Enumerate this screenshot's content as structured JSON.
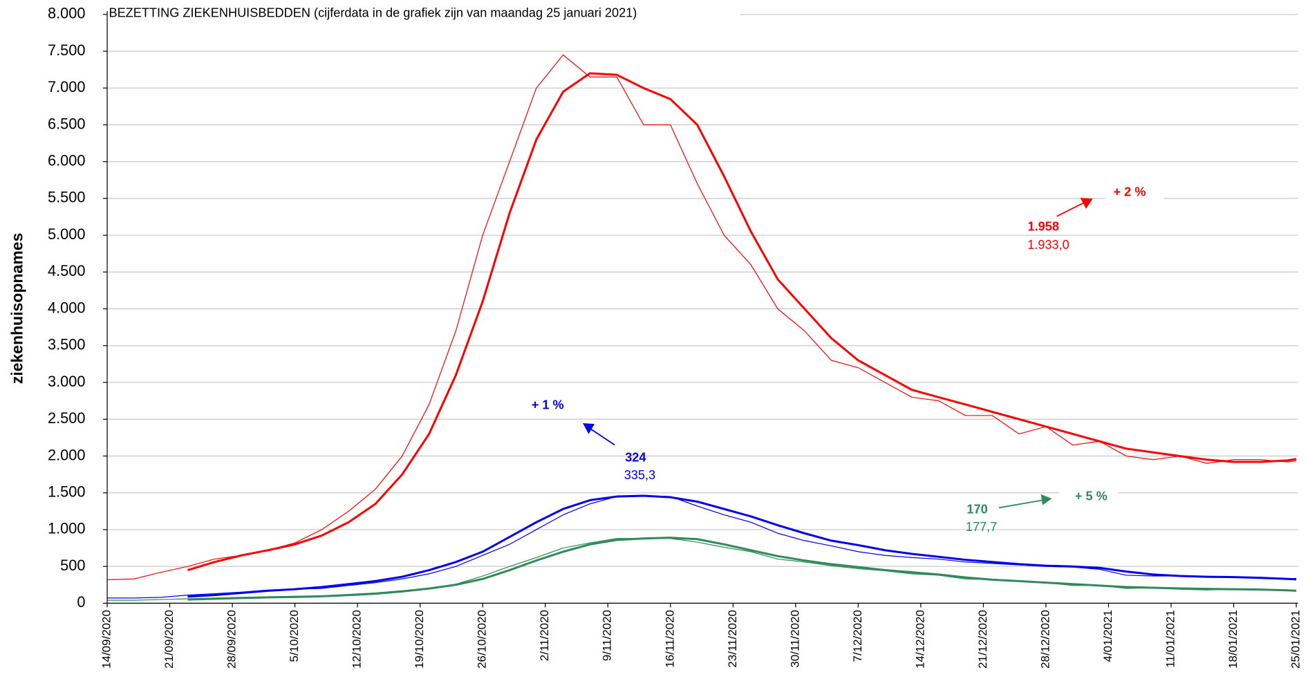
{
  "chart_data": {
    "type": "line",
    "title": "BEZETTING ZIEKENHUISBEDDEN (cijferdata in de grafiek zijn van maandag 25 januari 2021)",
    "y_label": "ziekenhuisopnames",
    "xlim": [
      "2020-09-14",
      "2021-01-25"
    ],
    "ylim": [
      0,
      8000
    ],
    "grid": true,
    "yticks": [
      0,
      500,
      {
        "value": 1000,
        "label": "1.000"
      },
      {
        "value": 1500,
        "label": "1.500"
      },
      {
        "value": 2000,
        "label": "2.000"
      },
      {
        "value": 2500,
        "label": "2.500"
      },
      {
        "value": 3000,
        "label": "3.000"
      },
      {
        "value": 3500,
        "label": "3.500"
      },
      {
        "value": 4000,
        "label": "4.000"
      },
      {
        "value": 4500,
        "label": "4.500"
      },
      {
        "value": 5000,
        "label": "5.000"
      },
      {
        "value": 5500,
        "label": "5.500"
      },
      {
        "value": 6000,
        "label": "6.000"
      },
      {
        "value": 6500,
        "label": "6.500"
      },
      {
        "value": 7000,
        "label": "7.000"
      },
      {
        "value": 7500,
        "label": "7.500"
      },
      {
        "value": 8000,
        "label": "8.000"
      }
    ],
    "xticks": [
      {
        "value": "2020-09-14",
        "label": "14/09/2020"
      },
      {
        "value": "2020-09-21",
        "label": "21/09/2020"
      },
      {
        "value": "2020-09-28",
        "label": "28/09/2020"
      },
      {
        "value": "2020-10-05",
        "label": "5/10/2020"
      },
      {
        "value": "2020-10-12",
        "label": "12/10/2020"
      },
      {
        "value": "2020-10-19",
        "label": "19/10/2020"
      },
      {
        "value": "2020-10-26",
        "label": "26/10/2020"
      },
      {
        "value": "2020-11-02",
        "label": "2/11/2020"
      },
      {
        "value": "2020-11-09",
        "label": "9/11/2020"
      },
      {
        "value": "2020-11-16",
        "label": "16/11/2020"
      },
      {
        "value": "2020-11-23",
        "label": "23/11/2020"
      },
      {
        "value": "2020-11-30",
        "label": "30/11/2020"
      },
      {
        "value": "2020-12-07",
        "label": "7/12/2020"
      },
      {
        "value": "2020-12-14",
        "label": "14/12/2020"
      },
      {
        "value": "2020-12-21",
        "label": "21/12/2020"
      },
      {
        "value": "2020-12-28",
        "label": "28/12/2020"
      },
      {
        "value": "2021-01-04",
        "label": "4/01/2021"
      },
      {
        "value": "2021-01-11",
        "label": "11/01/2021"
      },
      {
        "value": "2021-01-18",
        "label": "18/01/2021"
      },
      {
        "value": "2021-01-25",
        "label": "25/01/2021"
      }
    ],
    "x": [
      "2020-09-14",
      "2020-09-17",
      "2020-09-20",
      "2020-09-23",
      "2020-09-26",
      "2020-09-29",
      "2020-10-02",
      "2020-10-05",
      "2020-10-08",
      "2020-10-11",
      "2020-10-14",
      "2020-10-17",
      "2020-10-20",
      "2020-10-23",
      "2020-10-26",
      "2020-10-29",
      "2020-11-01",
      "2020-11-04",
      "2020-11-07",
      "2020-11-10",
      "2020-11-13",
      "2020-11-16",
      "2020-11-19",
      "2020-11-22",
      "2020-11-25",
      "2020-11-28",
      "2020-12-01",
      "2020-12-04",
      "2020-12-07",
      "2020-12-10",
      "2020-12-13",
      "2020-12-16",
      "2020-12-19",
      "2020-12-22",
      "2020-12-25",
      "2020-12-28",
      "2020-12-31",
      "2021-01-03",
      "2021-01-06",
      "2021-01-09",
      "2021-01-12",
      "2021-01-15",
      "2021-01-18",
      "2021-01-21",
      "2021-01-24",
      "2021-01-25"
    ],
    "series": [
      {
        "color": "#ff0000",
        "line_width": 1,
        "values": [
          320,
          330,
          420,
          500,
          600,
          650,
          720,
          820,
          1000,
          1250,
          1550,
          2000,
          2700,
          3700,
          5000,
          6000,
          7000,
          7450,
          7150,
          7150,
          6500,
          6500,
          5700,
          5000,
          4600,
          4000,
          3700,
          3300,
          3200,
          3000,
          2800,
          2750,
          2550,
          2550,
          2300,
          2400,
          2150,
          2200,
          2000,
          1950,
          2000,
          1900,
          1950,
          1950,
          1920,
          1933
        ]
      },
      {
        "color": "#ff0000",
        "line_width": 2.5,
        "values": [
          null,
          null,
          null,
          450,
          560,
          650,
          720,
          800,
          920,
          1100,
          1350,
          1750,
          2300,
          3100,
          4100,
          5300,
          6300,
          6950,
          7200,
          7180,
          7000,
          6850,
          6500,
          5800,
          5050,
          4400,
          4000,
          3600,
          3300,
          3100,
          2900,
          2800,
          2700,
          2600,
          2500,
          2400,
          2300,
          2200,
          2100,
          2050,
          2000,
          1950,
          1920,
          1920,
          1940,
          1958
        ]
      },
      {
        "color": "#0000ee",
        "line_width": 1,
        "values": [
          70,
          70,
          80,
          110,
          130,
          150,
          180,
          190,
          200,
          240,
          280,
          330,
          400,
          500,
          650,
          800,
          1000,
          1200,
          1350,
          1450,
          1460,
          1450,
          1320,
          1200,
          1100,
          950,
          850,
          780,
          700,
          650,
          620,
          600,
          560,
          540,
          520,
          500,
          490,
          460,
          380,
          370,
          370,
          350,
          350,
          340,
          335,
          335.3
        ]
      },
      {
        "color": "#0000ee",
        "line_width": 2.5,
        "values": [
          null,
          null,
          null,
          90,
          110,
          140,
          170,
          190,
          220,
          260,
          300,
          360,
          450,
          560,
          700,
          900,
          1100,
          1280,
          1400,
          1450,
          1460,
          1440,
          1380,
          1280,
          1180,
          1060,
          950,
          850,
          790,
          720,
          670,
          630,
          590,
          560,
          530,
          510,
          500,
          480,
          430,
          390,
          370,
          360,
          355,
          345,
          330,
          324
        ]
      },
      {
        "color": "#2e8b57",
        "line_width": 1,
        "values": [
          40,
          40,
          50,
          60,
          70,
          80,
          85,
          95,
          100,
          120,
          140,
          170,
          200,
          260,
          370,
          500,
          620,
          750,
          820,
          880,
          880,
          880,
          830,
          760,
          700,
          600,
          560,
          510,
          470,
          440,
          400,
          380,
          330,
          320,
          300,
          280,
          240,
          240,
          200,
          210,
          190,
          180,
          190,
          180,
          175,
          177.7
        ]
      },
      {
        "color": "#2e8b57",
        "line_width": 2.5,
        "values": [
          null,
          null,
          null,
          50,
          60,
          70,
          80,
          85,
          95,
          110,
          130,
          160,
          200,
          250,
          330,
          450,
          580,
          700,
          800,
          860,
          880,
          890,
          870,
          800,
          720,
          640,
          580,
          530,
          490,
          450,
          420,
          390,
          350,
          320,
          300,
          280,
          260,
          240,
          220,
          210,
          200,
          195,
          190,
          185,
          175,
          170
        ]
      }
    ],
    "annotations": [
      "+ 2 %",
      "1.958",
      "1.933,0",
      "+ 1 %",
      "324",
      "335,3",
      "170",
      "177,7",
      "+ 5 %"
    ]
  }
}
